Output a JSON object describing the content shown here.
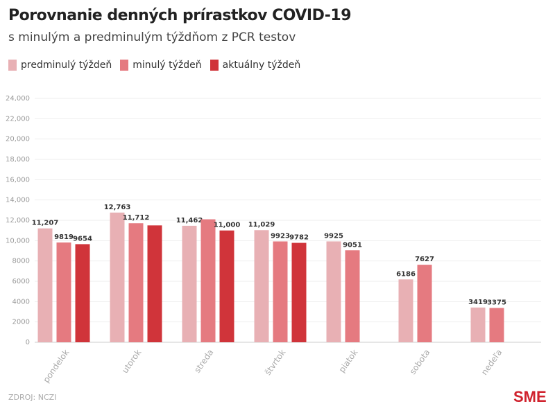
{
  "chart_data": {
    "type": "bar",
    "title": "Porovnanie denných prírastkov COVID-19",
    "subtitle": "s minulým a predminulým týždňom z PCR testov",
    "categories": [
      "pondelok",
      "utorok",
      "streda",
      "štvrtok",
      "piatok",
      "sobota",
      "nedeľa"
    ],
    "series": [
      {
        "name": "predminulý týždeň",
        "color": "#e8b0b4",
        "values": [
          11207,
          12763,
          11462,
          11029,
          9925,
          6186,
          3419
        ],
        "labels": [
          "11,207",
          "12,763",
          "11,462",
          "11,029",
          "9925",
          "6186",
          "3419"
        ]
      },
      {
        "name": "minulý týždeň",
        "color": "#e57a80",
        "values": [
          9819,
          11712,
          12100,
          9923,
          9051,
          7627,
          3375
        ],
        "labels": [
          "9819",
          "11,712",
          null,
          "9923",
          "9051",
          "7627",
          "3375"
        ]
      },
      {
        "name": "aktuálny týždeň",
        "color": "#d0343a",
        "values": [
          9654,
          11500,
          11000,
          9782,
          null,
          null,
          null
        ],
        "labels": [
          "9654",
          null,
          "11,000",
          "9782",
          null,
          null,
          null
        ]
      }
    ],
    "ylim": [
      0,
      24000
    ],
    "yticks": [
      "0",
      "2000",
      "4000",
      "6000",
      "8000",
      "10,000",
      "12,000",
      "14,000",
      "16,000",
      "18,000",
      "20,000",
      "22,000",
      "24,000"
    ],
    "grid": true,
    "legend": "top-left"
  },
  "source": "ZDROJ: NCZI",
  "logo": "SME"
}
